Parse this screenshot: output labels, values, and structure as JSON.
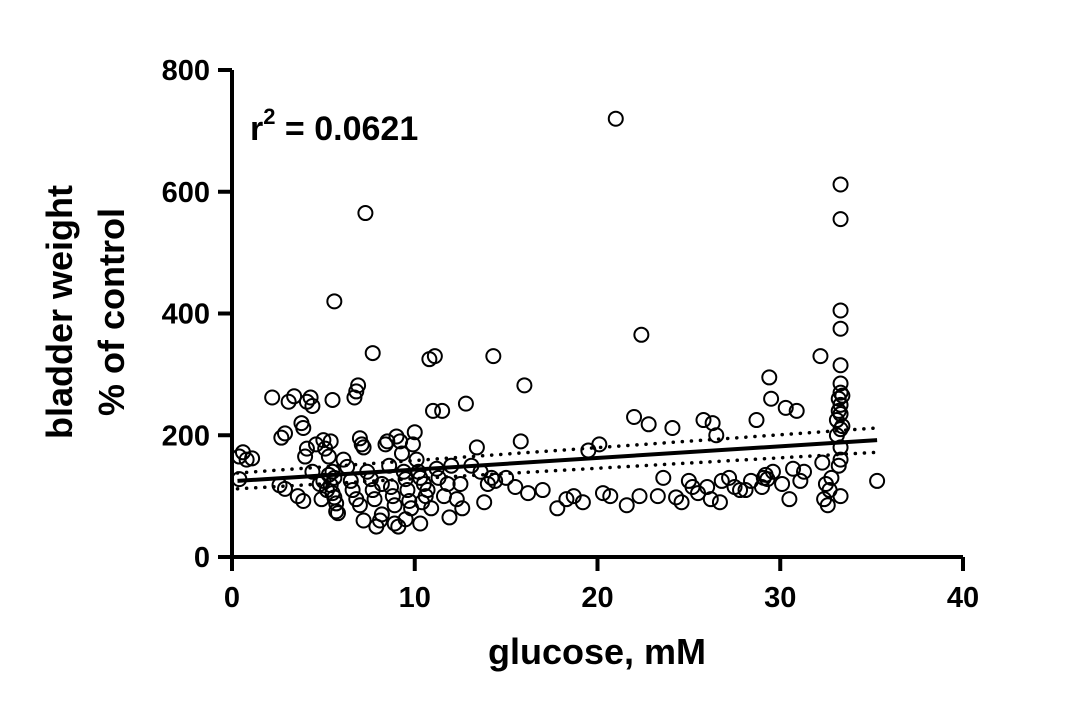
{
  "chart_data": {
    "type": "scatter",
    "title": "",
    "xlabel": "glucose, mM",
    "ylabel_line1": "bladder weight",
    "ylabel_line2": "% of control",
    "xlim": [
      0,
      40
    ],
    "ylim": [
      0,
      800
    ],
    "xticks": [
      0,
      10,
      20,
      30,
      40
    ],
    "yticks": [
      0,
      200,
      400,
      600,
      800
    ],
    "xtick_labels": [
      "0",
      "10",
      "20",
      "30",
      "40"
    ],
    "ytick_labels": [
      "0",
      "200",
      "400",
      "600",
      "800"
    ],
    "annotation": {
      "base": "r",
      "sup": "2",
      "rest": " = 0.0621"
    },
    "grid": false,
    "regression": {
      "x": [
        0.3,
        35.3
      ],
      "y": [
        125,
        192
      ]
    },
    "confidence_band": {
      "upper": {
        "x": [
          0.3,
          35.3
        ],
        "y": [
          138,
          212
        ]
      },
      "lower": {
        "x": [
          0.3,
          35.3
        ],
        "y": [
          112,
          172
        ]
      }
    },
    "colors": {
      "markers": "#000000",
      "line": "#000000",
      "background": "#ffffff"
    },
    "series": [
      {
        "points": [
          [
            0.4,
            165
          ],
          [
            0.6,
            172
          ],
          [
            0.8,
            160
          ],
          [
            1.1,
            162
          ],
          [
            0.4,
            128
          ],
          [
            2.2,
            262
          ],
          [
            2.7,
            196
          ],
          [
            2.9,
            203
          ],
          [
            3.1,
            255
          ],
          [
            3.4,
            264
          ],
          [
            3.8,
            220
          ],
          [
            3.9,
            212
          ],
          [
            4.1,
            255
          ],
          [
            4.3,
            262
          ],
          [
            4.4,
            248
          ],
          [
            4.1,
            178
          ],
          [
            4.0,
            165
          ],
          [
            2.9,
            112
          ],
          [
            2.6,
            118
          ],
          [
            3.6,
            100
          ],
          [
            3.9,
            92
          ],
          [
            4.4,
            140
          ],
          [
            4.6,
            185
          ],
          [
            4.8,
            120
          ],
          [
            4.9,
            95
          ],
          [
            5.0,
            192
          ],
          [
            5.1,
            178
          ],
          [
            5.3,
            165
          ],
          [
            5.4,
            190
          ],
          [
            5.5,
            140
          ],
          [
            5.6,
            130
          ],
          [
            5.2,
            110
          ],
          [
            5.0,
            125
          ],
          [
            5.3,
            135
          ],
          [
            5.4,
            118
          ],
          [
            5.5,
            105
          ],
          [
            5.6,
            98
          ],
          [
            5.7,
            88
          ],
          [
            5.7,
            75
          ],
          [
            5.8,
            72
          ],
          [
            5.5,
            258
          ],
          [
            5.6,
            420
          ],
          [
            6.1,
            160
          ],
          [
            6.3,
            148
          ],
          [
            6.5,
            125
          ],
          [
            6.6,
            110
          ],
          [
            6.7,
            262
          ],
          [
            6.8,
            272
          ],
          [
            6.9,
            282
          ],
          [
            7.0,
            195
          ],
          [
            7.1,
            185
          ],
          [
            7.2,
            180
          ],
          [
            6.8,
            95
          ],
          [
            7.0,
            85
          ],
          [
            7.2,
            60
          ],
          [
            7.3,
            565
          ],
          [
            7.4,
            140
          ],
          [
            7.6,
            128
          ],
          [
            7.7,
            110
          ],
          [
            7.8,
            95
          ],
          [
            7.7,
            335
          ],
          [
            7.9,
            50
          ],
          [
            8.1,
            60
          ],
          [
            8.2,
            70
          ],
          [
            8.2,
            120
          ],
          [
            8.4,
            185
          ],
          [
            8.5,
            190
          ],
          [
            8.6,
            150
          ],
          [
            8.7,
            115
          ],
          [
            8.8,
            100
          ],
          [
            8.9,
            85
          ],
          [
            8.9,
            55
          ],
          [
            9.1,
            50
          ],
          [
            9.0,
            198
          ],
          [
            9.2,
            190
          ],
          [
            9.3,
            170
          ],
          [
            9.4,
            140
          ],
          [
            9.5,
            128
          ],
          [
            9.6,
            110
          ],
          [
            9.7,
            92
          ],
          [
            9.5,
            62
          ],
          [
            9.8,
            80
          ],
          [
            9.9,
            185
          ],
          [
            10.0,
            205
          ],
          [
            10.1,
            160
          ],
          [
            10.2,
            140
          ],
          [
            10.3,
            130
          ],
          [
            10.3,
            55
          ],
          [
            10.4,
            90
          ],
          [
            10.5,
            120
          ],
          [
            10.6,
            100
          ],
          [
            10.7,
            110
          ],
          [
            10.8,
            325
          ],
          [
            10.9,
            80
          ],
          [
            11.0,
            240
          ],
          [
            11.1,
            330
          ],
          [
            11.2,
            145
          ],
          [
            11.3,
            130
          ],
          [
            11.5,
            240
          ],
          [
            11.6,
            100
          ],
          [
            11.8,
            120
          ],
          [
            11.9,
            65
          ],
          [
            12.0,
            150
          ],
          [
            12.3,
            95
          ],
          [
            12.5,
            120
          ],
          [
            12.6,
            80
          ],
          [
            12.8,
            252
          ],
          [
            13.1,
            150
          ],
          [
            13.4,
            180
          ],
          [
            13.6,
            140
          ],
          [
            13.8,
            90
          ],
          [
            14.0,
            120
          ],
          [
            14.2,
            130
          ],
          [
            14.3,
            330
          ],
          [
            14.4,
            125
          ],
          [
            15.0,
            130
          ],
          [
            15.5,
            115
          ],
          [
            15.8,
            190
          ],
          [
            16.0,
            282
          ],
          [
            16.2,
            105
          ],
          [
            17.0,
            110
          ],
          [
            17.8,
            80
          ],
          [
            18.3,
            95
          ],
          [
            18.7,
            100
          ],
          [
            19.2,
            90
          ],
          [
            19.5,
            175
          ],
          [
            20.1,
            185
          ],
          [
            20.3,
            105
          ],
          [
            20.7,
            100
          ],
          [
            21.0,
            720
          ],
          [
            21.6,
            85
          ],
          [
            22.0,
            230
          ],
          [
            22.3,
            100
          ],
          [
            22.4,
            365
          ],
          [
            22.8,
            218
          ],
          [
            23.3,
            100
          ],
          [
            23.6,
            130
          ],
          [
            24.1,
            212
          ],
          [
            24.3,
            98
          ],
          [
            24.6,
            90
          ],
          [
            25.0,
            125
          ],
          [
            25.2,
            115
          ],
          [
            25.5,
            105
          ],
          [
            25.8,
            225
          ],
          [
            26.0,
            115
          ],
          [
            26.2,
            95
          ],
          [
            26.3,
            220
          ],
          [
            26.5,
            200
          ],
          [
            26.7,
            90
          ],
          [
            26.8,
            125
          ],
          [
            27.2,
            130
          ],
          [
            27.5,
            115
          ],
          [
            27.8,
            110
          ],
          [
            28.1,
            110
          ],
          [
            28.4,
            125
          ],
          [
            28.7,
            225
          ],
          [
            29.0,
            115
          ],
          [
            29.1,
            130
          ],
          [
            29.2,
            135
          ],
          [
            29.3,
            128
          ],
          [
            29.4,
            295
          ],
          [
            29.5,
            260
          ],
          [
            29.6,
            140
          ],
          [
            30.1,
            120
          ],
          [
            30.3,
            245
          ],
          [
            30.5,
            95
          ],
          [
            30.7,
            145
          ],
          [
            30.9,
            240
          ],
          [
            31.1,
            125
          ],
          [
            31.3,
            140
          ],
          [
            32.2,
            330
          ],
          [
            32.3,
            155
          ],
          [
            32.4,
            95
          ],
          [
            32.5,
            120
          ],
          [
            32.6,
            85
          ],
          [
            32.7,
            110
          ],
          [
            32.8,
            130
          ],
          [
            33.1,
            225
          ],
          [
            33.1,
            200
          ],
          [
            33.2,
            260
          ],
          [
            33.2,
            240
          ],
          [
            33.2,
            150
          ],
          [
            33.3,
            612
          ],
          [
            33.3,
            555
          ],
          [
            33.3,
            405
          ],
          [
            33.3,
            375
          ],
          [
            33.3,
            315
          ],
          [
            33.3,
            285
          ],
          [
            33.3,
            270
          ],
          [
            33.3,
            250
          ],
          [
            33.3,
            235
          ],
          [
            33.3,
            210
          ],
          [
            33.3,
            180
          ],
          [
            33.3,
            160
          ],
          [
            33.3,
            100
          ],
          [
            33.4,
            265
          ],
          [
            33.4,
            215
          ],
          [
            35.3,
            125
          ]
        ]
      }
    ]
  }
}
